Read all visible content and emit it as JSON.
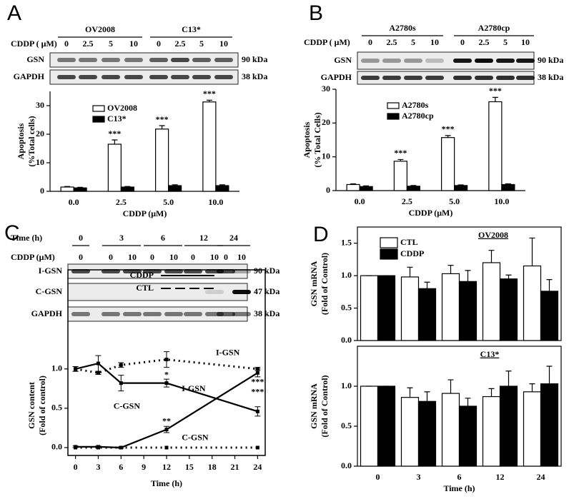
{
  "panel_labels": [
    "A",
    "B",
    "C",
    "D"
  ],
  "blots": [
    {
      "header_label": "CDDP ( μM)",
      "groups": [
        {
          "name": "OV2008",
          "lanes": [
            "0",
            "2.5",
            "5",
            "10"
          ]
        },
        {
          "name": "C13*",
          "lanes": [
            "0",
            "2.5",
            "5",
            "10"
          ]
        }
      ],
      "rows": [
        {
          "name": "GSN",
          "size": "90 kDa"
        },
        {
          "name": "GAPDH",
          "size": "38 kDa"
        }
      ]
    },
    {
      "header_label": "CDDP ( μM)",
      "groups": [
        {
          "name": "A2780s",
          "lanes": [
            "0",
            "2.5",
            "5",
            "10"
          ]
        },
        {
          "name": "A2780cp",
          "lanes": [
            "0",
            "2.5",
            "5",
            "10"
          ]
        }
      ],
      "rows": [
        {
          "name": "GSN",
          "size": "90 kDa"
        },
        {
          "name": "GAPDH",
          "size": "38 kDa"
        }
      ]
    },
    {
      "group_label": "Time (h)",
      "header_label": "CDDP (μM)",
      "groups": [
        {
          "name": "0",
          "lanes": [
            "0"
          ]
        },
        {
          "name": "3",
          "lanes": [
            "0",
            "10"
          ]
        },
        {
          "name": "6",
          "lanes": [
            "0",
            "10"
          ]
        },
        {
          "name": "12",
          "lanes": [
            "0",
            "10"
          ]
        },
        {
          "name": "24",
          "lanes": [
            "0",
            "10"
          ]
        }
      ],
      "rows": [
        {
          "name": "I-GSN",
          "size": "90 kDa"
        },
        {
          "name": "C-GSN",
          "size": "47 kDa"
        },
        {
          "name": "GAPDH",
          "size": "38 kDa"
        }
      ]
    }
  ],
  "chart_data": [
    {
      "type": "bar",
      "categories": [
        "0.0",
        "2.5",
        "5.0",
        "10.0"
      ],
      "xlabel": "CDDP (μM)",
      "ylabel": [
        "Apoptosis",
        "(%Total cells)"
      ],
      "ylim": [
        0,
        35
      ],
      "yticks": [
        0,
        10,
        20,
        30
      ],
      "series": [
        {
          "name": "OV2008",
          "color": "#ffffff",
          "values": [
            1.5,
            16.5,
            21.8,
            31.3
          ],
          "errors": [
            0.2,
            1.5,
            1.2,
            0.6
          ],
          "labels": [
            null,
            "***",
            "***",
            "***"
          ]
        },
        {
          "name": "C13*",
          "color": "#000000",
          "values": [
            1.2,
            1.5,
            2.0,
            2.0
          ],
          "errors": [
            0.2,
            0.2,
            0.3,
            0.3
          ]
        }
      ]
    },
    {
      "type": "bar",
      "categories": [
        "0.0",
        "2.5",
        "5.0",
        "10.0"
      ],
      "xlabel": "CDDP (μM)",
      "ylabel": [
        "Apoptosis",
        "(% Total Cells)"
      ],
      "ylim": [
        0,
        30
      ],
      "yticks": [
        0,
        10,
        20,
        30
      ],
      "series": [
        {
          "name": "A2780s",
          "color": "#ffffff",
          "values": [
            1.8,
            8.7,
            15.7,
            26.3
          ],
          "errors": [
            0.2,
            0.5,
            0.6,
            1.3
          ],
          "labels": [
            null,
            "***",
            "***",
            "***"
          ]
        },
        {
          "name": "A2780cp",
          "color": "#000000",
          "values": [
            1.2,
            1.3,
            1.5,
            1.8
          ],
          "errors": [
            0.2,
            0.2,
            0.2,
            0.2
          ]
        }
      ]
    },
    {
      "type": "line",
      "x": [
        0,
        3,
        6,
        12,
        24
      ],
      "xlabel": "Time (h)",
      "ylabel": [
        "GSN content",
        "(Fold of control)"
      ],
      "xlim": [
        -1,
        25
      ],
      "xticks": [
        0,
        3,
        6,
        9,
        12,
        15,
        18,
        21,
        24
      ],
      "ylim": [
        -0.1,
        2.26
      ],
      "yticks": [
        {
          "value": 0,
          "label": "0.0"
        },
        {
          "value": 0.5,
          "label": "0.5"
        },
        {
          "value": 1,
          "label": "1.0"
        }
      ],
      "legend": [
        {
          "name": "CDDP",
          "dash": false
        },
        {
          "name": "CTL",
          "dash": true
        }
      ],
      "series": [
        {
          "name": "I-GSN",
          "color": "#000000",
          "dash": false,
          "values": [
            1.0,
            1.07,
            0.82,
            0.82,
            0.46
          ],
          "errors": [
            0.03,
            0.1,
            0.1,
            0.05,
            0.06
          ]
        },
        {
          "name": "I-GSN",
          "color": "#000000",
          "dash": true,
          "values": [
            1.0,
            0.95,
            1.05,
            1.12,
            1.0
          ],
          "errors": [
            0.03,
            0.02,
            0.03,
            0.1,
            0.02
          ]
        },
        {
          "name": "C-GSN",
          "color": "#000000",
          "dash": false,
          "values": [
            0.01,
            0.01,
            0.0,
            0.23,
            0.95
          ],
          "errors": [
            0.01,
            0.01,
            0.01,
            0.04,
            0.05
          ]
        },
        {
          "name": "C-GSN",
          "color": "#000000",
          "dash": true,
          "values": [
            0.0,
            0.0,
            0.0,
            0.0,
            0.0
          ]
        }
      ],
      "annotations": [
        "*",
        "**",
        "***",
        "***"
      ]
    },
    {
      "type": "bar",
      "title": "OV2008",
      "ylabel": [
        "GSN mRNA",
        "(Fold of Control)"
      ],
      "ylim": [
        0,
        1.75
      ],
      "yticks": [
        {
          "value": 0,
          "label": "0.0"
        },
        {
          "value": 0.5,
          "label": "0.5"
        },
        {
          "value": 1,
          "label": "1.0"
        },
        {
          "value": 1.5,
          "label": "1.5"
        }
      ],
      "series": [
        {
          "name": "CTL",
          "color": "#ffffff",
          "values": [
            1.0,
            0.98,
            1.03,
            1.2,
            1.15
          ],
          "errors": [
            0,
            0.15,
            0.13,
            0.19,
            0.43
          ]
        },
        {
          "name": "CDDP",
          "color": "#000000",
          "values": [
            1.0,
            0.8,
            0.91,
            0.95,
            0.76
          ],
          "errors": [
            0,
            0.1,
            0.17,
            0.06,
            0.18
          ]
        }
      ]
    },
    {
      "type": "bar",
      "title": "C13*",
      "categories": [
        "0",
        "3",
        "6",
        "12",
        "24"
      ],
      "xlabel": "Time (h)",
      "ylabel": [
        "GSN mRNA",
        "(Fold of Control)"
      ],
      "ylim": [
        0,
        1.5
      ],
      "yticks": [
        {
          "value": 0,
          "label": "0.0"
        },
        {
          "value": 0.5,
          "label": "0.5"
        },
        {
          "value": 1,
          "label": "1.0"
        }
      ],
      "series": [
        {
          "color": "#ffffff",
          "values": [
            1.0,
            0.86,
            0.91,
            0.87,
            0.93
          ],
          "errors": [
            0,
            0.12,
            0.17,
            0.1,
            0.1
          ]
        },
        {
          "color": "#000000",
          "values": [
            1.0,
            0.81,
            0.75,
            1.0,
            1.03
          ],
          "errors": [
            0,
            0.12,
            0.1,
            0.19,
            0.22
          ]
        }
      ]
    }
  ]
}
